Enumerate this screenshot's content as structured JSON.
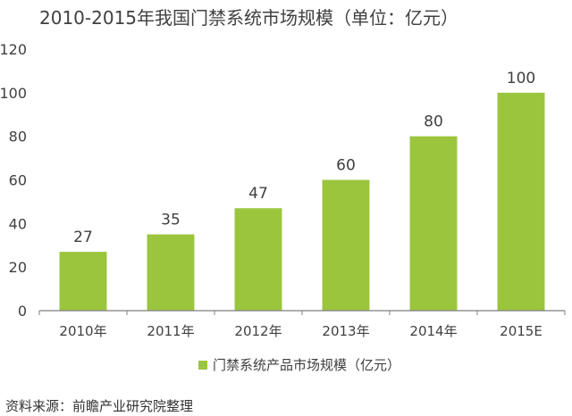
{
  "title": "2010-2015年我国门禁系统市场规模（单位：亿元）",
  "source": "资料来源：前瞻产业研究院整理",
  "colors": {
    "bar": "#9bc53d",
    "axis": "#7f7f7f",
    "text": "#404040"
  },
  "chart_data": {
    "type": "bar",
    "title": "2010-2015年我国门禁系统市场规模（单位：亿元）",
    "categories": [
      "2010年",
      "2011年",
      "2012年",
      "2013年",
      "2014年",
      "2015E"
    ],
    "series": [
      {
        "name": "门禁系统产品市场规模（亿元）",
        "values": [
          27,
          35,
          47,
          60,
          80,
          100
        ]
      }
    ],
    "ylim": [
      0,
      120
    ],
    "yticks": [
      0,
      20,
      40,
      60,
      80,
      100,
      120
    ],
    "grid": false,
    "legend": "bottom-center",
    "data_labels": true
  }
}
